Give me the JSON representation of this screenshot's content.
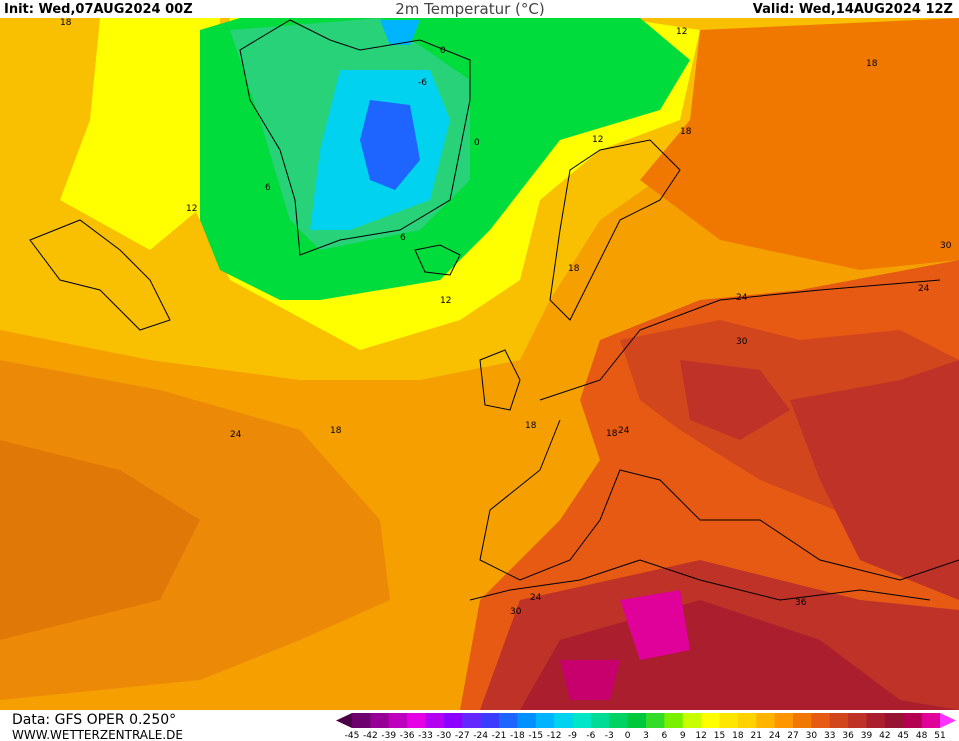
{
  "header": {
    "init": "Init: Wed,07AUG2024 00Z",
    "title": "2m Temperatur (°C)",
    "valid": "Valid: Wed,14AUG2024 12Z"
  },
  "footer": {
    "data": "Data: GFS OPER 0.250°",
    "site": "WWW.WETTERZENTRALE.DE"
  },
  "contour_labels": [
    "18",
    "0",
    "-6",
    "0",
    "12",
    "18",
    "12",
    "6",
    "12",
    "6",
    "12",
    "18",
    "24",
    "18",
    "24",
    "30",
    "24",
    "30",
    "24",
    "24",
    "30",
    "36",
    "18",
    "18",
    "18"
  ],
  "colorbar": {
    "labels": [
      "-45",
      "-42",
      "-39",
      "-36",
      "-33",
      "-30",
      "-27",
      "-24",
      "-21",
      "-18",
      "-15",
      "-12",
      "-9",
      "-6",
      "-3",
      "0",
      "3",
      "6",
      "9",
      "12",
      "15",
      "18",
      "21",
      "24",
      "27",
      "30",
      "33",
      "36",
      "39",
      "42",
      "45",
      "48",
      "51"
    ],
    "colors": [
      "#4b0046",
      "#6e006e",
      "#960096",
      "#be00be",
      "#e600e6",
      "#b400f0",
      "#8c00ff",
      "#6428ff",
      "#3c3cff",
      "#1e64ff",
      "#0090ff",
      "#00b4ff",
      "#00d2f0",
      "#00e6c8",
      "#00dc96",
      "#00d264",
      "#00c83c",
      "#32dc28",
      "#78f000",
      "#c8ff00",
      "#ffff00",
      "#ffe600",
      "#ffd200",
      "#ffb400",
      "#ff9600",
      "#f07800",
      "#e65a14",
      "#d2461e",
      "#be3228",
      "#aa1e2d",
      "#961432",
      "#b40050",
      "#e0009a",
      "#ff32ff"
    ]
  }
}
